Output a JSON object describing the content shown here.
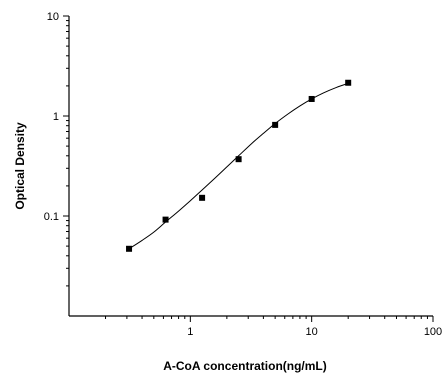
{
  "chart_data": {
    "type": "scatter",
    "title": "",
    "xlabel": "A-CoA concentration(ng/mL)",
    "ylabel": "Optical Density",
    "x_scale": "log",
    "y_scale": "log",
    "xlim": [
      0.1,
      100
    ],
    "ylim": [
      0.01,
      10
    ],
    "grid": false,
    "legend": "none",
    "x_ticks": [
      {
        "value": 1,
        "label": "1"
      },
      {
        "value": 10,
        "label": "10"
      },
      {
        "value": 100,
        "label": "100"
      }
    ],
    "y_ticks": [
      {
        "value": 0.1,
        "label": "0.1"
      },
      {
        "value": 1,
        "label": "1"
      },
      {
        "value": 10,
        "label": "10"
      }
    ],
    "series": [
      {
        "marker": "square",
        "x": [
          0.3125,
          0.625,
          1.25,
          2.5,
          5,
          10,
          20
        ],
        "y": [
          0.047,
          0.092,
          0.152,
          0.37,
          0.815,
          1.48,
          2.15
        ]
      }
    ],
    "fit_curve": {
      "type": "4PL",
      "x": [
        0.3125,
        0.4,
        0.5,
        0.625,
        0.8,
        1.0,
        1.25,
        1.6,
        2.0,
        2.5,
        3.2,
        4.0,
        5.0,
        6.4,
        8.0,
        10,
        12.5,
        16,
        20
      ],
      "y": [
        0.047,
        0.057,
        0.069,
        0.087,
        0.112,
        0.142,
        0.182,
        0.24,
        0.31,
        0.4,
        0.53,
        0.67,
        0.84,
        1.05,
        1.26,
        1.48,
        1.7,
        1.93,
        2.12
      ]
    }
  }
}
